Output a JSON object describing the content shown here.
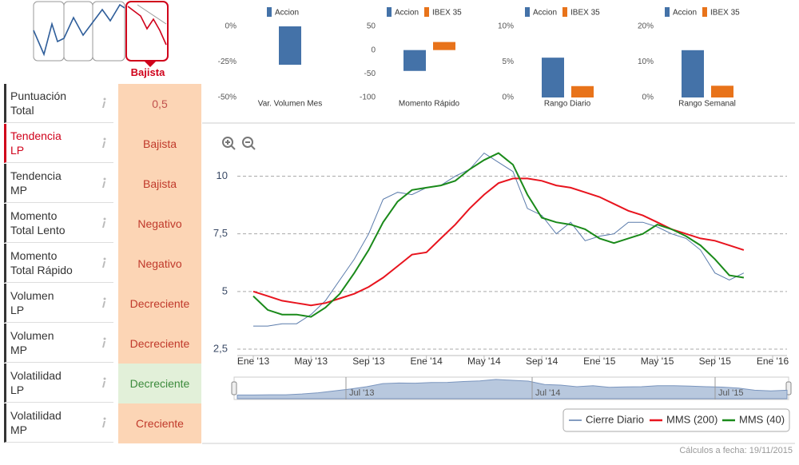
{
  "trend": {
    "label": "Bajista"
  },
  "indicators": [
    {
      "label": "Puntuación\nTotal",
      "value": "0,5",
      "label_color": "#333333",
      "value_color": "#c0504d",
      "background": "#fcd5b5"
    },
    {
      "label": "Tendencia\nLP",
      "value": "Bajista",
      "label_color": "#d0021b",
      "value_color": "#c0392b",
      "background": "#fcd5b5"
    },
    {
      "label": "Tendencia\nMP",
      "value": "Bajista",
      "label_color": "#333333",
      "value_color": "#c0392b",
      "background": "#fcd5b5"
    },
    {
      "label": "Momento\nTotal Lento",
      "value": "Negativo",
      "label_color": "#333333",
      "value_color": "#c0392b",
      "background": "#fcd5b5"
    },
    {
      "label": "Momento\nTotal Rápido",
      "value": "Negativo",
      "label_color": "#333333",
      "value_color": "#c0392b",
      "background": "#fcd5b5"
    },
    {
      "label": "Volumen\nLP",
      "value": "Decreciente",
      "label_color": "#333333",
      "value_color": "#c0392b",
      "background": "#fcd5b5"
    },
    {
      "label": "Volumen\nMP",
      "value": "Decreciente",
      "label_color": "#333333",
      "value_color": "#c0392b",
      "background": "#fcd5b5"
    },
    {
      "label": "Volatilidad\nLP",
      "value": "Decreciente",
      "label_color": "#333333",
      "value_color": "#3c8a3c",
      "background": "#e2f0d9"
    },
    {
      "label": "Volatilidad\nMP",
      "value": "Creciente",
      "label_color": "#333333",
      "value_color": "#c0392b",
      "background": "#fcd5b5"
    }
  ],
  "footer": "Cálculos a fecha: 19/11/2015",
  "chart_data": [
    {
      "type": "bar",
      "categories": [
        "Var. Volumen Mes"
      ],
      "series": [
        {
          "name": "Accion",
          "color": "#4472a8",
          "values": [
            -27
          ]
        }
      ],
      "ylim": [
        -50,
        0
      ],
      "yticks": [
        {
          "value": 0,
          "label": "0%"
        },
        {
          "value": -25,
          "label": "-25%"
        },
        {
          "value": -50,
          "label": "-50%"
        }
      ]
    },
    {
      "type": "bar",
      "categories": [
        "Momento Rápido"
      ],
      "series": [
        {
          "name": "Accion",
          "color": "#4472a8",
          "values": [
            -44
          ]
        },
        {
          "name": "IBEX 35",
          "color": "#e8731a",
          "values": [
            17
          ]
        }
      ],
      "ylim": [
        -100,
        50
      ],
      "yticks": [
        50,
        0,
        -50,
        -100
      ]
    },
    {
      "type": "bar",
      "categories": [
        "Rango Diario"
      ],
      "series": [
        {
          "name": "Accion",
          "color": "#4472a8",
          "values": [
            5.6
          ]
        },
        {
          "name": "IBEX 35",
          "color": "#e8731a",
          "values": [
            1.6
          ]
        }
      ],
      "ylim": [
        0,
        10
      ],
      "yticks": [
        {
          "value": 0,
          "label": "0%"
        },
        {
          "value": 5,
          "label": "5%"
        },
        {
          "value": 10,
          "label": "10%"
        }
      ]
    },
    {
      "type": "bar",
      "categories": [
        "Rango Semanal"
      ],
      "series": [
        {
          "name": "Accion",
          "color": "#4472a8",
          "values": [
            13.3
          ]
        },
        {
          "name": "IBEX 35",
          "color": "#e8731a",
          "values": [
            3.3
          ]
        }
      ],
      "ylim": [
        0,
        20
      ],
      "yticks": [
        {
          "value": 0,
          "label": "0%"
        },
        {
          "value": 10,
          "label": "10%"
        },
        {
          "value": 20,
          "label": "20%"
        }
      ]
    },
    {
      "type": "line",
      "x": [
        "Ene '13",
        null,
        null,
        null,
        "May '13",
        null,
        null,
        null,
        "Sep '13",
        null,
        null,
        null,
        "Ene '14",
        null,
        null,
        null,
        "May '14",
        null,
        null,
        null,
        "Sep '14",
        null,
        null,
        null,
        "Ene '15",
        null,
        null,
        null,
        "May '15",
        null,
        null,
        null,
        "Sep '15",
        null,
        null,
        null,
        "Ene '16"
      ],
      "series": [
        {
          "name": "Cierre Diario",
          "color": "#5a7bab",
          "values": [
            3.5,
            3.5,
            3.6,
            3.6,
            4.0,
            4.6,
            5.5,
            6.4,
            7.5,
            9.0,
            9.3,
            9.2,
            9.5,
            9.6,
            10.0,
            10.3,
            11.0,
            10.6,
            10.2,
            8.6,
            8.3,
            7.5,
            8.0,
            7.2,
            7.4,
            7.5,
            8.0,
            8.0,
            7.8,
            7.5,
            7.3,
            6.8,
            5.8,
            5.5,
            5.8,
            null,
            null
          ]
        },
        {
          "name": "MMS (200)",
          "color": "#e8141e",
          "values": [
            5.0,
            4.8,
            4.6,
            4.5,
            4.4,
            4.5,
            4.7,
            4.9,
            5.2,
            5.6,
            6.1,
            6.6,
            6.7,
            7.3,
            7.9,
            8.6,
            9.2,
            9.7,
            9.9,
            9.9,
            9.8,
            9.6,
            9.5,
            9.3,
            9.1,
            8.8,
            8.5,
            8.3,
            8.0,
            7.7,
            7.5,
            7.3,
            7.2,
            7.0,
            6.8,
            null,
            null
          ]
        },
        {
          "name": "MMS (40)",
          "color": "#1a8a1a",
          "values": [
            4.8,
            4.2,
            4.0,
            4.0,
            3.9,
            4.3,
            4.9,
            5.8,
            6.8,
            8.0,
            8.9,
            9.4,
            9.5,
            9.6,
            9.8,
            10.3,
            10.7,
            11.0,
            10.5,
            9.2,
            8.2,
            8.0,
            7.9,
            7.7,
            7.3,
            7.1,
            7.3,
            7.5,
            7.9,
            7.7,
            7.4,
            7.0,
            6.4,
            5.7,
            5.6,
            null,
            null
          ]
        }
      ],
      "ylim": [
        2.5,
        11.75
      ],
      "yticks": [
        {
          "value": 2.5,
          "label": "2,5"
        },
        5,
        {
          "value": 7.5,
          "label": "7,5"
        },
        10
      ],
      "grid": true,
      "navigator_labels": [
        "Jul '13",
        "Jul '14",
        "Jul '15"
      ]
    }
  ]
}
